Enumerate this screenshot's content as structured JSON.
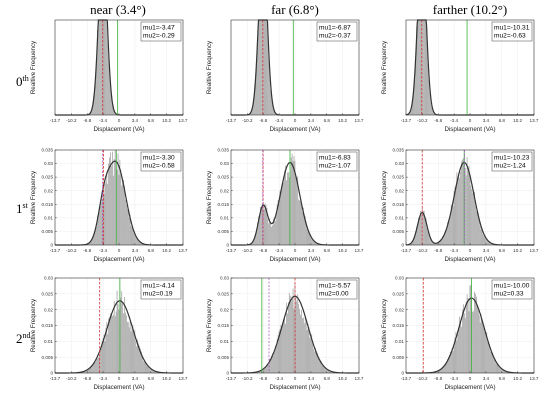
{
  "column_titles": [
    "near (3.4°)",
    "far (6.8°)",
    "farther (10.2°)"
  ],
  "row_labels": [
    {
      "base": "0",
      "sup": "th"
    },
    {
      "base": "1",
      "sup": "st"
    },
    {
      "base": "2",
      "sup": "nd"
    }
  ],
  "colors": {
    "bar": "#a6a6a6",
    "fit": "#333333",
    "red_line": "#e03030",
    "green_line": "#38b038",
    "purple_line": "#a050c0"
  },
  "chart_data": [
    {
      "type": "bar",
      "row": 0,
      "col": 0,
      "xlabel": "Displacement (VA)",
      "ylabel": "Realtive Frequency",
      "xlim": [
        -13.7,
        13.7
      ],
      "ylim": [
        0,
        0.25
      ],
      "x_ticks": [
        "-13.7",
        "-10.2",
        "-6.8",
        "-3.4",
        "0",
        "3.4",
        "6.8",
        "10.2",
        "13.7"
      ],
      "y_ticks": [],
      "components": [
        {
          "mu": -3.47,
          "sigma": 0.9,
          "weight": 1.0
        }
      ],
      "annotations": [
        "mu1=-3.47",
        "mu2=-0.29"
      ],
      "lines": {
        "red": -3.47,
        "green": -0.29,
        "purple": null
      }
    },
    {
      "type": "bar",
      "row": 0,
      "col": 1,
      "xlabel": "Displacement (VA)",
      "ylabel": "Realtive Frequency",
      "xlim": [
        -13.7,
        13.7
      ],
      "ylim": [
        0,
        0.25
      ],
      "x_ticks": [
        "-13.7",
        "-10.2",
        "-6.8",
        "-3.4",
        "0",
        "3.4",
        "6.8",
        "10.2",
        "13.7"
      ],
      "y_ticks": [],
      "components": [
        {
          "mu": -6.87,
          "sigma": 0.9,
          "weight": 1.0
        }
      ],
      "annotations": [
        "mu1=-6.87",
        "mu2=-0.37"
      ],
      "lines": {
        "red": -6.87,
        "green": -0.37,
        "purple": null
      }
    },
    {
      "type": "bar",
      "row": 0,
      "col": 2,
      "xlabel": "Displacement (VA)",
      "ylabel": "Realtive Frequency",
      "xlim": [
        -13.7,
        13.7
      ],
      "ylim": [
        0,
        0.25
      ],
      "x_ticks": [
        "-13.7",
        "-10.2",
        "-6.8",
        "-3.4",
        "0",
        "3.4",
        "6.8",
        "10.2",
        "13.7"
      ],
      "y_ticks": [],
      "components": [
        {
          "mu": -10.31,
          "sigma": 0.9,
          "weight": 1.0
        }
      ],
      "annotations": [
        "mu1=-10.31",
        "mu2=-0.63"
      ],
      "lines": {
        "red": -10.31,
        "green": -0.63,
        "purple": null
      }
    },
    {
      "type": "bar",
      "row": 1,
      "col": 0,
      "xlabel": "Displacement (VA)",
      "ylabel": "Realtive Frequency",
      "xlim": [
        -13.7,
        13.7
      ],
      "ylim": [
        0,
        0.035
      ],
      "x_ticks": [
        "-13.7",
        "-10.2",
        "-6.8",
        "-3.4",
        "0",
        "3.4",
        "6.8",
        "10.2",
        "13.7"
      ],
      "y_ticks": [
        "0",
        "0.005",
        "0.01",
        "0.015",
        "0.02",
        "0.025",
        "0.03",
        "0.035"
      ],
      "components": [
        {
          "mu": -3.3,
          "sigma": 1.2,
          "weight": 0.03
        },
        {
          "mu": -0.58,
          "sigma": 2.0,
          "weight": 0.15
        }
      ],
      "annotations": [
        "mu1=-3.30",
        "mu2=-0.58"
      ],
      "lines": {
        "red": -3.3,
        "green": -0.58,
        "purple": -3.5
      }
    },
    {
      "type": "bar",
      "row": 1,
      "col": 1,
      "xlabel": "Displacement (VA)",
      "ylabel": "Realtive Frequency",
      "xlim": [
        -13.7,
        13.7
      ],
      "ylim": [
        0,
        0.035
      ],
      "x_ticks": [
        "-13.7",
        "-10.2",
        "-6.8",
        "-3.4",
        "0",
        "3.4",
        "6.8",
        "10.2",
        "13.7"
      ],
      "y_ticks": [
        "0",
        "0.005",
        "0.01",
        "0.015",
        "0.02",
        "0.025",
        "0.03",
        "0.035"
      ],
      "components": [
        {
          "mu": -6.83,
          "sigma": 1.0,
          "weight": 0.035
        },
        {
          "mu": -1.07,
          "sigma": 2.1,
          "weight": 0.16
        }
      ],
      "annotations": [
        "mu1=-6.83",
        "mu2=-1.07"
      ],
      "lines": {
        "red": -6.83,
        "green": -1.07,
        "purple": -6.9
      }
    },
    {
      "type": "bar",
      "row": 1,
      "col": 2,
      "xlabel": "Displacement (VA)",
      "ylabel": "Realtive Frequency",
      "xlim": [
        -13.7,
        13.7
      ],
      "ylim": [
        0,
        0.035
      ],
      "x_ticks": [
        "-13.7",
        "-10.2",
        "-6.8",
        "-3.4",
        "0",
        "3.4",
        "6.8",
        "10.2",
        "13.7"
      ],
      "y_ticks": [
        "0",
        "0.005",
        "0.01",
        "0.015",
        "0.02",
        "0.025",
        "0.03",
        "0.035"
      ],
      "components": [
        {
          "mu": -10.23,
          "sigma": 1.0,
          "weight": 0.03
        },
        {
          "mu": -1.24,
          "sigma": 2.1,
          "weight": 0.16
        }
      ],
      "annotations": [
        "mu1=-10.23",
        "mu2=-1.24"
      ],
      "lines": {
        "red": -10.23,
        "green": -1.24,
        "purple": -1.2
      }
    },
    {
      "type": "bar",
      "row": 2,
      "col": 0,
      "xlabel": "Displacement (VA)",
      "ylabel": "Realtive Frequency",
      "xlim": [
        -13.7,
        13.7
      ],
      "ylim": [
        0,
        0.03
      ],
      "x_ticks": [
        "-13.7",
        "-10.2",
        "-6.8",
        "-3.4",
        "0",
        "3.4",
        "6.8",
        "10.2",
        "13.7"
      ],
      "y_ticks": [
        "0",
        "0.005",
        "0.01",
        "0.015",
        "0.02",
        "0.025",
        "0.03"
      ],
      "components": [
        {
          "mu": 0.19,
          "sigma": 2.8,
          "weight": 0.16
        }
      ],
      "annotations": [
        "mu1=-4.14",
        "mu2=0.19"
      ],
      "lines": {
        "red": -4.14,
        "green": 0.19,
        "purple": null
      }
    },
    {
      "type": "bar",
      "row": 2,
      "col": 1,
      "xlabel": "Displacement (VA)",
      "ylabel": "Realtive Frequency",
      "xlim": [
        -13.7,
        13.7
      ],
      "ylim": [
        0,
        0.03
      ],
      "x_ticks": [
        "-13.7",
        "-10.2",
        "-6.8",
        "-3.4",
        "0",
        "3.4",
        "6.8",
        "10.2",
        "13.7"
      ],
      "y_ticks": [
        "0",
        "0.005",
        "0.01",
        "0.015",
        "0.02",
        "0.025",
        "0.03"
      ],
      "components": [
        {
          "mu": 0.0,
          "sigma": 2.8,
          "weight": 0.17
        }
      ],
      "annotations": [
        "mu1=-5.57",
        "mu2=0.00"
      ],
      "lines": {
        "red": 0.0,
        "green": -7.1,
        "purple": -5.57
      }
    },
    {
      "type": "bar",
      "row": 2,
      "col": 2,
      "xlabel": "Displacement (VA)",
      "ylabel": "Realtive Frequency",
      "xlim": [
        -13.7,
        13.7
      ],
      "ylim": [
        0,
        0.03
      ],
      "x_ticks": [
        "-13.7",
        "-10.2",
        "-6.8",
        "-3.4",
        "0",
        "3.4",
        "6.8",
        "10.2",
        "13.7"
      ],
      "y_ticks": [
        "0",
        "0.005",
        "0.01",
        "0.015",
        "0.02",
        "0.025",
        "0.03"
      ],
      "components": [
        {
          "mu": 0.33,
          "sigma": 2.7,
          "weight": 0.16
        }
      ],
      "annotations": [
        "mu1=-10.00",
        "mu2=0.33"
      ],
      "lines": {
        "red": -10.0,
        "green": 0.33,
        "purple": null
      }
    }
  ]
}
